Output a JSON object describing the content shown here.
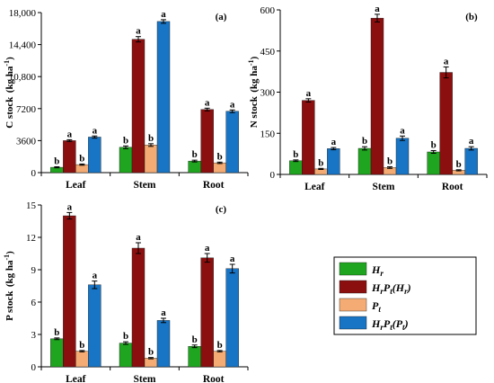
{
  "colors": {
    "Hr": "#1fa51f",
    "HrPt(Hr)": "#8b0f0f",
    "Pt": "#f4ac74",
    "HrPt(Pt)": "#1874c4"
  },
  "legend": {
    "items": [
      {
        "key": "Hr",
        "base": "H",
        "sub": "r"
      },
      {
        "key": "HrPt(Hr)",
        "base": "H",
        "sub": "r",
        "base2": "P",
        "sub2": "t",
        "suffix_open": "(H",
        "suffix_sub": "r",
        "suffix_close": ")"
      },
      {
        "key": "Pt",
        "base": "P",
        "sub": "t"
      },
      {
        "key": "HrPt(Pt)",
        "base": "H",
        "sub": "r",
        "base2": "P",
        "sub2": "t",
        "suffix_open": "(P",
        "suffix_sub": "t",
        "suffix_close": ")"
      }
    ]
  },
  "chart_data": [
    {
      "type": "bar",
      "panel": "(a)",
      "ylabel_main": "C stock",
      "ylabel_unit": "kg ha",
      "ylabel_sup": "-1",
      "ylim": [
        0,
        18000
      ],
      "yticks": [
        0,
        3600,
        7200,
        10800,
        14400,
        18000
      ],
      "ytick_labels": [
        "0",
        "3600",
        "7200",
        "10,800",
        "14,400",
        "18,000"
      ],
      "categories": [
        "Leaf",
        "Stem",
        "Root"
      ],
      "series": [
        {
          "key": "Hr",
          "values": [
            600,
            2850,
            1300
          ],
          "errors": [
            60,
            150,
            100
          ],
          "sig": [
            "b",
            "b",
            "b"
          ]
        },
        {
          "key": "HrPt(Hr)",
          "values": [
            3600,
            15000,
            7100
          ],
          "errors": [
            100,
            300,
            150
          ],
          "sig": [
            "a",
            "a",
            "a"
          ]
        },
        {
          "key": "Pt",
          "values": [
            900,
            3100,
            1100
          ],
          "errors": [
            70,
            150,
            80
          ],
          "sig": [
            "b",
            "b",
            "b"
          ]
        },
        {
          "key": "HrPt(Pt)",
          "values": [
            4000,
            17000,
            6900
          ],
          "errors": [
            120,
            200,
            150
          ],
          "sig": [
            "a",
            "a",
            "a"
          ]
        }
      ]
    },
    {
      "type": "bar",
      "panel": "(b)",
      "ylabel_main": "N stock",
      "ylabel_unit": "kg ha",
      "ylabel_sup": "-1",
      "ylim": [
        0,
        600
      ],
      "yticks": [
        0,
        150,
        300,
        450,
        600
      ],
      "ytick_labels": [
        "0",
        "150",
        "300",
        "450",
        "600"
      ],
      "categories": [
        "Leaf",
        "Stem",
        "Root"
      ],
      "series": [
        {
          "key": "Hr",
          "values": [
            50,
            95,
            82
          ],
          "errors": [
            3,
            6,
            5
          ],
          "sig": [
            "b",
            "b",
            "b"
          ]
        },
        {
          "key": "HrPt(Hr)",
          "values": [
            270,
            570,
            372
          ],
          "errors": [
            6,
            14,
            20
          ],
          "sig": [
            "a",
            "a",
            "a"
          ]
        },
        {
          "key": "Pt",
          "values": [
            20,
            25,
            15
          ],
          "errors": [
            2,
            3,
            2
          ],
          "sig": [
            "b",
            "b",
            "b"
          ]
        },
        {
          "key": "HrPt(Pt)",
          "values": [
            94,
            132,
            95
          ],
          "errors": [
            4,
            8,
            6
          ],
          "sig": [
            "a",
            "a",
            "a"
          ]
        }
      ]
    },
    {
      "type": "bar",
      "panel": "(c)",
      "ylabel_main": "P stock",
      "ylabel_unit": "kg ha",
      "ylabel_sup": "-1",
      "ylim": [
        0,
        15
      ],
      "yticks": [
        0,
        3,
        6,
        9,
        12,
        15
      ],
      "ytick_labels": [
        "0",
        "3",
        "6",
        "9",
        "12",
        "15"
      ],
      "categories": [
        "Leaf",
        "Stem",
        "Root"
      ],
      "series": [
        {
          "key": "Hr",
          "values": [
            2.6,
            2.2,
            1.9
          ],
          "errors": [
            0.08,
            0.12,
            0.12
          ],
          "sig": [
            "b",
            "b",
            "b"
          ]
        },
        {
          "key": "HrPt(Hr)",
          "values": [
            14.0,
            11.0,
            10.1
          ],
          "errors": [
            0.3,
            0.5,
            0.4
          ],
          "sig": [
            "a",
            "a",
            "a"
          ]
        },
        {
          "key": "Pt",
          "values": [
            1.45,
            0.8,
            1.45
          ],
          "errors": [
            0.06,
            0.06,
            0.06
          ],
          "sig": [
            "b",
            "b",
            "b"
          ]
        },
        {
          "key": "HrPt(Pt)",
          "values": [
            7.6,
            4.3,
            9.1
          ],
          "errors": [
            0.35,
            0.2,
            0.4
          ],
          "sig": [
            "a",
            "a",
            "a"
          ]
        }
      ]
    }
  ]
}
